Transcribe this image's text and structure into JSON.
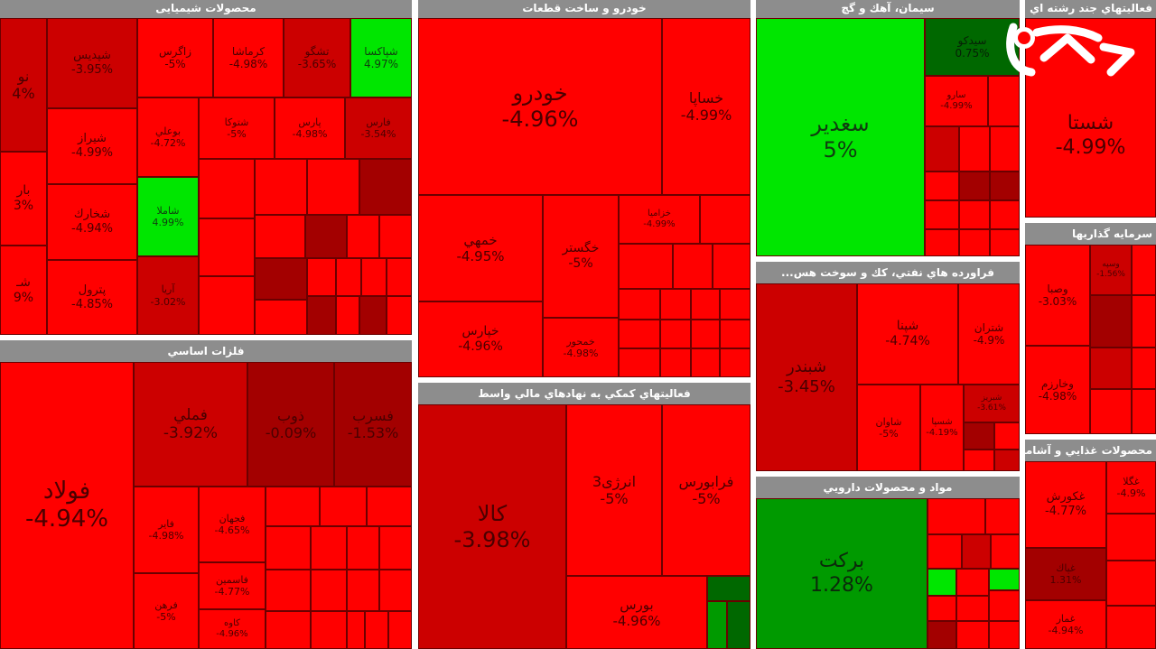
{
  "sectors": {
    "chem": {
      "title": "محصولات شیمیایی",
      "tiles": {
        "t1": {
          "name": "نو",
          "pct": "4%"
        },
        "t2": {
          "name": "شپديس",
          "pct": "-3.95%"
        },
        "t3": {
          "name": "زاگرس",
          "pct": "-5%"
        },
        "t4": {
          "name": "كرماشا",
          "pct": "-4.98%"
        },
        "t5": {
          "name": "تشگو",
          "pct": "-3.65%"
        },
        "t6": {
          "name": "شپاكسا",
          "pct": "4.97%"
        },
        "t7": {
          "name": "شيراز",
          "pct": "-4.99%"
        },
        "t8": {
          "name": "بوعلي",
          "pct": "-4.72%"
        },
        "t9": {
          "name": "شتوكا",
          "pct": "-5%"
        },
        "t10": {
          "name": "پارس",
          "pct": "-4.98%"
        },
        "t11": {
          "name": "فارس",
          "pct": "-3.54%"
        },
        "t12": {
          "name": "شخارك",
          "pct": "-4.94%"
        },
        "t13": {
          "name": "شاملا",
          "pct": "4.99%"
        },
        "t14": {
          "name": "پترول",
          "pct": "-4.85%"
        },
        "t15": {
          "name": "آريا",
          "pct": "-3.02%"
        },
        "t16": {
          "name": "بار",
          "pct": "3%"
        },
        "t17": {
          "name": "شـ",
          "pct": "9%"
        }
      }
    },
    "auto": {
      "title": "خودرو و ساخت قطعات",
      "tiles": {
        "t1": {
          "name": "خودرو",
          "pct": "-4.96%"
        },
        "t2": {
          "name": "خساپا",
          "pct": "-4.99%"
        },
        "t3": {
          "name": "خمهي",
          "pct": "-4.95%"
        },
        "t4": {
          "name": "خگستر",
          "pct": "-5%"
        },
        "t5": {
          "name": "خزاميا",
          "pct": "-4.99%"
        },
        "t6": {
          "name": "خپارس",
          "pct": "-4.96%"
        },
        "t7": {
          "name": "خمحور",
          "pct": "-4.98%"
        }
      }
    },
    "cement": {
      "title": "سيمان، آهك و گچ",
      "tiles": {
        "t1": {
          "name": "سغدير",
          "pct": "5%"
        },
        "t2": {
          "name": "سيدكو",
          "pct": "0.75%"
        },
        "t3": {
          "name": "سارو",
          "pct": "-4.99%"
        }
      }
    },
    "textile": {
      "title": "فعاليتهاي جند رشته اي صنعتي",
      "tiles": {
        "t1": {
          "name": "شستا",
          "pct": "-4.99%"
        }
      }
    },
    "oil": {
      "title": "فراورده هاي نفتي، كك و سوخت هس...",
      "tiles": {
        "t1": {
          "name": "شبندر",
          "pct": "-3.45%"
        },
        "t2": {
          "name": "شپنا",
          "pct": "-4.74%"
        },
        "t3": {
          "name": "شتران",
          "pct": "-4.9%"
        },
        "t4": {
          "name": "شاوان",
          "pct": "-5%"
        },
        "t5": {
          "name": "شسپا",
          "pct": "-4.19%"
        },
        "t6": {
          "name": "شبريز",
          "pct": "-3.61%"
        }
      }
    },
    "invest": {
      "title": "سرمايه گذاريها",
      "tiles": {
        "t1": {
          "name": "وصبا",
          "pct": "-3.03%"
        },
        "t2": {
          "name": "وخارزم",
          "pct": "-4.98%"
        },
        "t3": {
          "name": "وسپه",
          "pct": "-1.56%"
        }
      }
    },
    "metal": {
      "title": "فلزات اساسي",
      "tiles": {
        "t1": {
          "name": "فولاد",
          "pct": "-4.94%"
        },
        "t2": {
          "name": "فملي",
          "pct": "-3.92%"
        },
        "t3": {
          "name": "ذوب",
          "pct": "-0.09%"
        },
        "t4": {
          "name": "فسرب",
          "pct": "-1.53%"
        },
        "t5": {
          "name": "فاير",
          "pct": "-4.98%"
        },
        "t6": {
          "name": "فجهان",
          "pct": "-4.65%"
        },
        "t7": {
          "name": "فاسمين",
          "pct": "-4.77%"
        },
        "t8": {
          "name": "فرهن",
          "pct": "-5%"
        },
        "t9": {
          "name": "كاوه",
          "pct": "-4.96%"
        }
      }
    },
    "finance": {
      "title": "فعاليتهاي كمكي به نهادهاي مالي واسط",
      "tiles": {
        "t1": {
          "name": "كالا",
          "pct": "-3.98%"
        },
        "t2": {
          "name": "انرژی3",
          "pct": "-5%"
        },
        "t3": {
          "name": "فرابورس",
          "pct": "-5%"
        },
        "t4": {
          "name": "بورس",
          "pct": "-4.96%"
        }
      }
    },
    "pharma": {
      "title": "مواد و محصولات دارويي",
      "tiles": {
        "t1": {
          "name": "بركت",
          "pct": "1.28%"
        }
      }
    },
    "food": {
      "title": "محصولات غذايي و آشاميدني",
      "tiles": {
        "t1": {
          "name": "غكورش",
          "pct": "-4.77%"
        },
        "t2": {
          "name": "غگلا",
          "pct": "-4.9%"
        },
        "t3": {
          "name": "غپاك",
          "pct": "1.31%"
        },
        "t4": {
          "name": "غمار",
          "pct": "-4.94%"
        }
      }
    }
  },
  "colors": {
    "down": "#ff0000",
    "down_dark": "#a30000",
    "up": "#00e600",
    "up_dark": "#006800",
    "header": "#8d8d8d"
  },
  "logo_icon": "rokna-logo"
}
